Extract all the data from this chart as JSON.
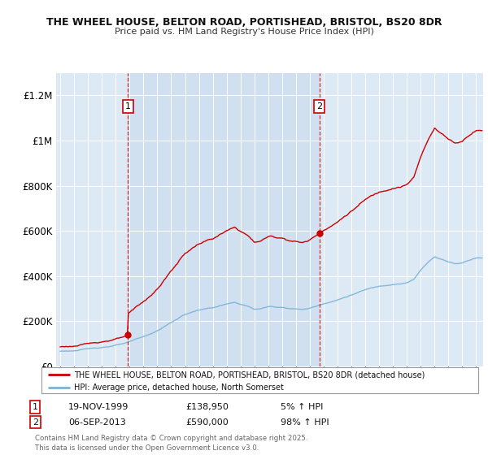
{
  "title1": "THE WHEEL HOUSE, BELTON ROAD, PORTISHEAD, BRISTOL, BS20 8DR",
  "title2": "Price paid vs. HM Land Registry's House Price Index (HPI)",
  "legend_line1": "THE WHEEL HOUSE, BELTON ROAD, PORTISHEAD, BRISTOL, BS20 8DR (detached house)",
  "legend_line2": "HPI: Average price, detached house, North Somerset",
  "sale1_date": "19-NOV-1999",
  "sale1_price": 138950,
  "sale2_date": "06-SEP-2013",
  "sale2_price": 590000,
  "sale1_pct": "5% ↑ HPI",
  "sale2_pct": "98% ↑ HPI",
  "footnote": "Contains HM Land Registry data © Crown copyright and database right 2025.\nThis data is licensed under the Open Government Licence v3.0.",
  "hpi_color": "#7ab3d4",
  "price_color": "#cc0000",
  "bg_color": "#ddeaf5",
  "shade_color": "#ccddf0",
  "ylim_max": 1300000,
  "sale1_year": 1999.88,
  "sale2_year": 2013.69,
  "xmin": 1994.7,
  "xmax": 2025.5
}
